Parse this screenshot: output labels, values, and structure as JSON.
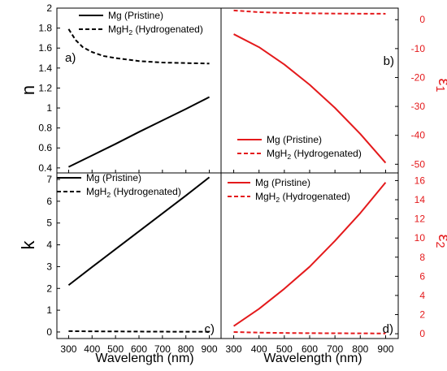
{
  "figure": {
    "xlabel": "Wavelength (nm)",
    "colors": {
      "black": "#000000",
      "red": "#e41a1c"
    }
  },
  "chart_data": [
    {
      "panel": "a)",
      "type": "line",
      "ylabel": "n",
      "xlim": [
        250,
        950
      ],
      "ylim": [
        0.35,
        2.0
      ],
      "xticks": [
        "300",
        "400",
        "500",
        "600",
        "700",
        "800",
        "900"
      ],
      "yticks": [
        "0.4",
        "0.6",
        "0.8",
        "1",
        "1.2",
        "1.4",
        "1.6",
        "1.8",
        "2"
      ],
      "legend_position": "top",
      "series": [
        {
          "name": "Mg (Pristine)",
          "name_main": "Mg (Pristine)",
          "color": "#000000",
          "style": "solid",
          "x": [
            300,
            400,
            500,
            600,
            700,
            800,
            900
          ],
          "y": [
            0.41,
            0.525,
            0.64,
            0.76,
            0.875,
            0.99,
            1.11
          ]
        },
        {
          "name": "MgH2 (Hydrogenated)",
          "name_main": "MgH",
          "name_sub": "2",
          "name_rest": " (Hydrogenated)",
          "color": "#000000",
          "style": "dashed",
          "x": [
            300,
            330,
            360,
            400,
            450,
            500,
            600,
            700,
            800,
            900
          ],
          "y": [
            1.79,
            1.68,
            1.61,
            1.56,
            1.52,
            1.5,
            1.47,
            1.455,
            1.45,
            1.445
          ]
        }
      ]
    },
    {
      "panel": "b)",
      "type": "line",
      "ylabel": "ε1",
      "ylabel_main": "ε",
      "ylabel_sub": "1",
      "xlim": [
        250,
        950
      ],
      "ylim": [
        -53,
        4
      ],
      "xticks": [
        "300",
        "400",
        "500",
        "600",
        "700",
        "800",
        "900"
      ],
      "yticks": [
        "0",
        "-10",
        "-20",
        "-30",
        "-40",
        "-50"
      ],
      "ytick_side": "right",
      "legend_position": "bottom",
      "series": [
        {
          "name": "Mg (Pristine)",
          "name_main": "Mg (Pristine)",
          "color": "#e41a1c",
          "style": "solid",
          "x": [
            300,
            400,
            500,
            600,
            700,
            800,
            900
          ],
          "y": [
            -5,
            -9.5,
            -15.5,
            -22.5,
            -30.5,
            -39.5,
            -49.5
          ]
        },
        {
          "name": "MgH2 (Hydrogenated)",
          "name_main": "MgH",
          "name_sub": "2",
          "name_rest": " (Hydrogenated)",
          "color": "#e41a1c",
          "style": "dashed",
          "x": [
            300,
            400,
            500,
            600,
            700,
            800,
            900
          ],
          "y": [
            3.2,
            2.6,
            2.35,
            2.2,
            2.12,
            2.08,
            2.05
          ]
        }
      ]
    },
    {
      "panel": "c)",
      "type": "line",
      "ylabel": "k",
      "xlim": [
        250,
        950
      ],
      "ylim": [
        -0.3,
        7.3
      ],
      "xticks": [
        "300",
        "400",
        "500",
        "600",
        "700",
        "800",
        "900"
      ],
      "yticks": [
        "0",
        "1",
        "2",
        "3",
        "4",
        "5",
        "6",
        "7"
      ],
      "legend_position": "top-left",
      "series": [
        {
          "name": "Mg (Pristine)",
          "name_main": "Mg (Pristine)",
          "color": "#000000",
          "style": "solid",
          "x": [
            300,
            400,
            500,
            600,
            700,
            800,
            900
          ],
          "y": [
            2.15,
            2.98,
            3.8,
            4.62,
            5.44,
            6.26,
            7.1
          ]
        },
        {
          "name": "MgH2 (Hydrogenated)",
          "name_main": "MgH",
          "name_sub": "2",
          "name_rest": " (Hydrogenated)",
          "color": "#000000",
          "style": "dashed",
          "x": [
            300,
            400,
            500,
            600,
            700,
            800,
            900
          ],
          "y": [
            0.04,
            0.03,
            0.025,
            0.02,
            0.015,
            0.01,
            0.01
          ]
        }
      ]
    },
    {
      "panel": "d)",
      "type": "line",
      "ylabel": "ε2",
      "ylabel_main": "ε",
      "ylabel_sub": "2",
      "xlim": [
        250,
        950
      ],
      "ylim": [
        -0.5,
        16.8
      ],
      "xticks": [
        "300",
        "400",
        "500",
        "600",
        "700",
        "800",
        "900"
      ],
      "yticks": [
        "0",
        "2",
        "4",
        "6",
        "8",
        "10",
        "12",
        "14",
        "16"
      ],
      "ytick_side": "right",
      "legend_position": "top-left",
      "series": [
        {
          "name": "Mg (Pristine)",
          "name_main": "Mg (Pristine)",
          "color": "#e41a1c",
          "style": "solid",
          "x": [
            300,
            400,
            500,
            600,
            700,
            800,
            900
          ],
          "y": [
            0.8,
            2.6,
            4.7,
            7.0,
            9.7,
            12.6,
            15.8
          ]
        },
        {
          "name": "MgH2 (Hydrogenated)",
          "name_main": "MgH",
          "name_sub": "2",
          "name_rest": " (Hydrogenated)",
          "color": "#e41a1c",
          "style": "dashed",
          "x": [
            300,
            400,
            500,
            600,
            700,
            800,
            900
          ],
          "y": [
            0.18,
            0.12,
            0.08,
            0.06,
            0.05,
            0.04,
            0.03
          ]
        }
      ]
    }
  ]
}
